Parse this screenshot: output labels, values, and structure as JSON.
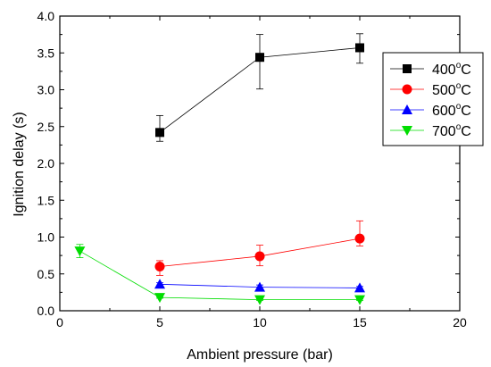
{
  "chart_data": {
    "type": "line",
    "xlabel": "Ambient pressure (bar)",
    "ylabel": "Ignition delay (s)",
    "xlim": [
      0,
      20
    ],
    "ylim": [
      0,
      4.0
    ],
    "xticks": [
      "0",
      "5",
      "10",
      "15",
      "20"
    ],
    "yticks": [
      "0.0",
      "0.5",
      "1.0",
      "1.5",
      "2.0",
      "2.5",
      "3.0",
      "3.5",
      "4.0"
    ],
    "grid": false,
    "legend_position": "top-right",
    "series": [
      {
        "name": "400",
        "unit": "C",
        "superscript": "o",
        "color": "#000000",
        "marker": "square",
        "points": [
          {
            "x": 5,
            "y": 2.42,
            "err_low": 0.12,
            "err_high": 0.23
          },
          {
            "x": 10,
            "y": 3.44,
            "err_low": 0.43,
            "err_high": 0.31
          },
          {
            "x": 15,
            "y": 3.57,
            "err_low": 0.21,
            "err_high": 0.19
          }
        ]
      },
      {
        "name": "500",
        "unit": "C",
        "superscript": "o",
        "color": "#ff0000",
        "marker": "circle",
        "points": [
          {
            "x": 5,
            "y": 0.6,
            "err_low": 0.12,
            "err_high": 0.08
          },
          {
            "x": 10,
            "y": 0.74,
            "err_low": 0.13,
            "err_high": 0.15
          },
          {
            "x": 15,
            "y": 0.98,
            "err_low": 0.1,
            "err_high": 0.24
          }
        ]
      },
      {
        "name": "600",
        "unit": "C",
        "superscript": "o",
        "color": "#0000ff",
        "marker": "triangle-up",
        "points": [
          {
            "x": 5,
            "y": 0.36,
            "err_low": 0.02,
            "err_high": 0.02
          },
          {
            "x": 10,
            "y": 0.32,
            "err_low": 0.04,
            "err_high": 0.03
          },
          {
            "x": 15,
            "y": 0.31,
            "err_low": 0.02,
            "err_high": 0.02
          }
        ]
      },
      {
        "name": "700",
        "unit": "C",
        "superscript": "o",
        "color": "#00dd00",
        "marker": "triangle-down",
        "points": [
          {
            "x": 1,
            "y": 0.81,
            "err_low": 0.09,
            "err_high": 0.09
          },
          {
            "x": 5,
            "y": 0.18,
            "err_low": 0.01,
            "err_high": 0.01
          },
          {
            "x": 10,
            "y": 0.15,
            "err_low": 0.01,
            "err_high": 0.01
          },
          {
            "x": 15,
            "y": 0.15,
            "err_low": 0.01,
            "err_high": 0.01
          }
        ]
      }
    ]
  }
}
